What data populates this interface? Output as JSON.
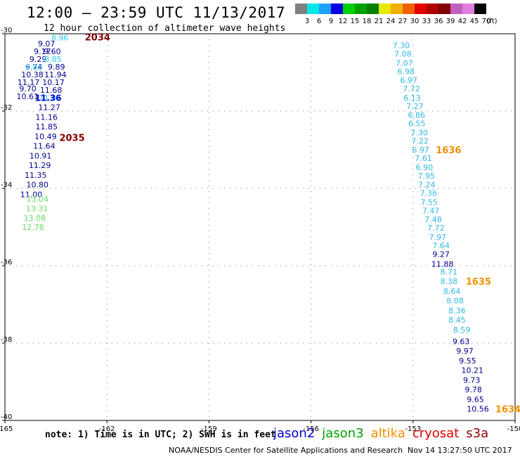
{
  "title": "12:00 – 23:59 UTC 11/13/2017",
  "subtitle": "12 hour collection of altimeter wave heights",
  "colorbar": {
    "unit": "(ft)",
    "bins": [
      {
        "label": "3",
        "color": "#808080"
      },
      {
        "label": "6",
        "color": "#00e8e8"
      },
      {
        "label": "9",
        "color": "#1ea0ff"
      },
      {
        "label": "12",
        "color": "#0000e0"
      },
      {
        "label": "15",
        "color": "#00d000"
      },
      {
        "label": "18",
        "color": "#00a000"
      },
      {
        "label": "21",
        "color": "#008000"
      },
      {
        "label": "24",
        "color": "#e8e800"
      },
      {
        "label": "27",
        "color": "#f0b000"
      },
      {
        "label": "30",
        "color": "#f06000"
      },
      {
        "label": "33",
        "color": "#e00000"
      },
      {
        "label": "36",
        "color": "#b00000"
      },
      {
        "label": "39",
        "color": "#800000"
      },
      {
        "label": "42",
        "color": "#c060c0"
      },
      {
        "label": "45",
        "color": "#e080e0"
      },
      {
        "label": "70",
        "color": "#000000"
      }
    ]
  },
  "map": {
    "lon_range": [
      -165,
      -150
    ],
    "lat_range": [
      -40,
      -30
    ],
    "lon_ticks": [
      "-165",
      "-162",
      "-159",
      "-156",
      "-153",
      "-150"
    ],
    "lat_ticks": [
      "-30",
      "-32",
      "-34",
      "-36",
      "-38",
      "-40"
    ]
  },
  "tracks": [
    {
      "color": "#000090",
      "points": [
        {
          "lon": -164.03,
          "lat": -30.25,
          "value": "9.07"
        },
        {
          "lon": -164.15,
          "lat": -30.45,
          "value": "9.17"
        },
        {
          "lon": -164.28,
          "lat": -30.65,
          "value": "9.29"
        },
        {
          "lon": -164.4,
          "lat": -30.85,
          "value": "9.74"
        },
        {
          "lon": -164.52,
          "lat": -31.05,
          "value": "10.38"
        },
        {
          "lon": -164.63,
          "lat": -31.25,
          "value": "11.17"
        },
        {
          "lon": -164.58,
          "lat": -31.42,
          "value": "9.70"
        },
        {
          "lon": -164.66,
          "lat": -31.62,
          "value": "10.61"
        },
        {
          "lon": -163.86,
          "lat": -30.45,
          "value": "9.60"
        },
        {
          "lon": -163.74,
          "lat": -30.85,
          "value": "9.89"
        },
        {
          "lon": -163.84,
          "lat": -31.05,
          "value": "11.94"
        },
        {
          "lon": -163.9,
          "lat": -31.25,
          "value": "10.17"
        },
        {
          "lon": -163.97,
          "lat": -31.45,
          "value": "11.68"
        },
        {
          "lon": -164.02,
          "lat": -31.9,
          "value": "11.27"
        },
        {
          "lon": -164.1,
          "lat": -32.15,
          "value": "11.16"
        },
        {
          "lon": -164.1,
          "lat": -32.4,
          "value": "11.85"
        },
        {
          "lon": -164.13,
          "lat": -32.65,
          "value": "10.49"
        },
        {
          "lon": -164.17,
          "lat": -32.9,
          "value": "11.64"
        },
        {
          "lon": -164.28,
          "lat": -33.15,
          "value": "10.91"
        },
        {
          "lon": -164.3,
          "lat": -33.4,
          "value": "11.29"
        },
        {
          "lon": -164.42,
          "lat": -33.65,
          "value": "11.35"
        },
        {
          "lon": -164.37,
          "lat": -33.9,
          "value": "10.80"
        },
        {
          "lon": -164.55,
          "lat": -34.15,
          "value": "11.00"
        }
      ]
    },
    {
      "color": "#30c8f0",
      "points": [
        {
          "lon": -163.64,
          "lat": -30.1,
          "value": "8.96"
        },
        {
          "lon": -163.84,
          "lat": -30.65,
          "value": "8.85"
        },
        {
          "lon": -164.4,
          "lat": -30.85,
          "value": "8.83"
        },
        {
          "lon": -164.0,
          "lat": -31.65,
          "value": "11.07"
        }
      ]
    },
    {
      "color": "#0000e0",
      "points": [
        {
          "lon": -164.12,
          "lat": -31.66,
          "value": "11.36",
          "bold": true
        }
      ]
    },
    {
      "color": "#66dd66",
      "points": [
        {
          "lon": -164.37,
          "lat": -34.27,
          "value": "13.04"
        },
        {
          "lon": -164.38,
          "lat": -34.52,
          "value": "13.31"
        },
        {
          "lon": -164.45,
          "lat": -34.76,
          "value": "13.08"
        },
        {
          "lon": -164.5,
          "lat": -35.0,
          "value": "12.78"
        }
      ]
    },
    {
      "color": "#30b8e8",
      "points": [
        {
          "lon": -153.6,
          "lat": -30.3,
          "value": "7.30"
        },
        {
          "lon": -153.55,
          "lat": -30.52,
          "value": "7.08"
        },
        {
          "lon": -153.51,
          "lat": -30.75,
          "value": "7.07"
        },
        {
          "lon": -153.46,
          "lat": -30.97,
          "value": "6.98"
        },
        {
          "lon": -153.38,
          "lat": -31.2,
          "value": "6.97"
        },
        {
          "lon": -153.3,
          "lat": -31.42,
          "value": "7.72"
        },
        {
          "lon": -153.28,
          "lat": -31.65,
          "value": "6.13"
        },
        {
          "lon": -153.2,
          "lat": -31.87,
          "value": "7.27"
        },
        {
          "lon": -153.15,
          "lat": -32.1,
          "value": "6.86"
        },
        {
          "lon": -153.14,
          "lat": -32.32,
          "value": "6.55"
        },
        {
          "lon": -153.07,
          "lat": -32.55,
          "value": "7.30"
        },
        {
          "lon": -153.05,
          "lat": -32.77,
          "value": "7.22"
        },
        {
          "lon": -153.03,
          "lat": -33.0,
          "value": "6.97"
        },
        {
          "lon": -152.95,
          "lat": -33.22,
          "value": "7.61"
        },
        {
          "lon": -152.92,
          "lat": -33.45,
          "value": "6.90"
        },
        {
          "lon": -152.86,
          "lat": -33.67,
          "value": "7.95"
        },
        {
          "lon": -152.85,
          "lat": -33.9,
          "value": "7.24"
        },
        {
          "lon": -152.8,
          "lat": -34.12,
          "value": "7.36"
        },
        {
          "lon": -152.78,
          "lat": -34.35,
          "value": "7.55"
        },
        {
          "lon": -152.73,
          "lat": -34.57,
          "value": "7.47"
        },
        {
          "lon": -152.66,
          "lat": -34.8,
          "value": "7.48"
        },
        {
          "lon": -152.58,
          "lat": -35.02,
          "value": "7.72"
        },
        {
          "lon": -152.53,
          "lat": -35.25,
          "value": "7.97"
        },
        {
          "lon": -152.43,
          "lat": -35.47,
          "value": "7.64"
        },
        {
          "lon": -152.2,
          "lat": -36.15,
          "value": "8.71"
        },
        {
          "lon": -152.2,
          "lat": -36.4,
          "value": "8.38"
        },
        {
          "lon": -152.11,
          "lat": -36.65,
          "value": "8.64"
        },
        {
          "lon": -152.02,
          "lat": -36.9,
          "value": "8.08"
        },
        {
          "lon": -151.96,
          "lat": -37.15,
          "value": "8.36"
        },
        {
          "lon": -151.96,
          "lat": -37.4,
          "value": "8.45"
        },
        {
          "lon": -151.82,
          "lat": -37.65,
          "value": "8.59"
        }
      ]
    },
    {
      "color": "#000090",
      "points": [
        {
          "lon": -152.43,
          "lat": -35.7,
          "value": "9.27"
        },
        {
          "lon": -152.46,
          "lat": -35.95,
          "value": "11.88"
        },
        {
          "lon": -151.84,
          "lat": -37.95,
          "value": "9.63"
        },
        {
          "lon": -151.73,
          "lat": -38.2,
          "value": "9.97"
        },
        {
          "lon": -151.65,
          "lat": -38.45,
          "value": "9.55"
        },
        {
          "lon": -151.58,
          "lat": -38.7,
          "value": "10.21"
        },
        {
          "lon": -151.53,
          "lat": -38.95,
          "value": "9.73"
        },
        {
          "lon": -151.48,
          "lat": -39.2,
          "value": "9.78"
        },
        {
          "lon": -151.42,
          "lat": -39.45,
          "value": "9.65"
        },
        {
          "lon": -151.42,
          "lat": -39.7,
          "value": "10.56"
        }
      ]
    }
  ],
  "time_labels": [
    {
      "lon": -162.65,
      "lat": -30.08,
      "text": "2034",
      "color": "#800000"
    },
    {
      "lon": -163.4,
      "lat": -32.68,
      "text": "2035",
      "color": "#800000"
    },
    {
      "lon": -152.33,
      "lat": -33.0,
      "text": "1636",
      "color": "#f09000"
    },
    {
      "lon": -151.45,
      "lat": -36.4,
      "text": "1635",
      "color": "#f09000"
    },
    {
      "lon": -150.58,
      "lat": -39.7,
      "text": "1634",
      "color": "#f09000"
    }
  ],
  "note": "note: 1) Time is in UTC; 2) SWH is in feet",
  "legend": [
    {
      "name": "jason2",
      "color": "#0000cc"
    },
    {
      "name": "jason3",
      "color": "#00a000"
    },
    {
      "name": "altika",
      "color": "#f09000"
    },
    {
      "name": "cryosat",
      "color": "#e00000"
    },
    {
      "name": "s3a",
      "color": "#900000"
    }
  ],
  "credit": "NOAA/NESDIS Center for Satellite Applications and Research",
  "timestamp": "Nov 14 13:27:50 UTC 2017"
}
